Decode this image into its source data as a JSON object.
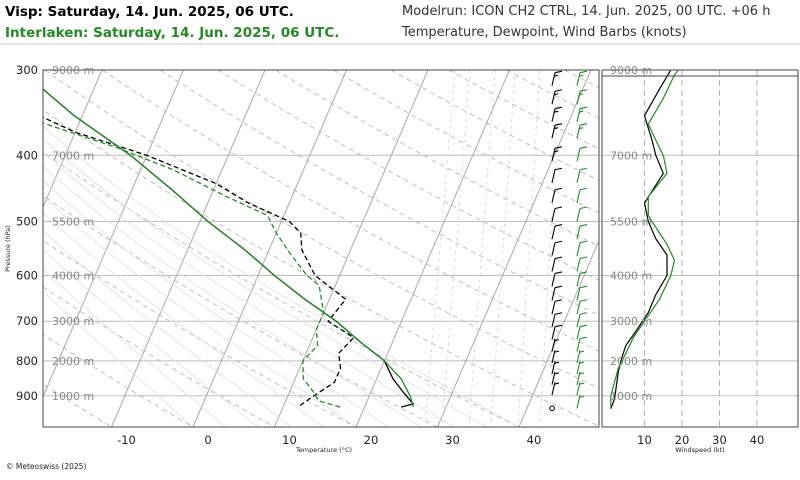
{
  "header": {
    "location_1": "Visp: Saturday, 14. Jun. 2025, 06 UTC.",
    "location_2": "Interlaken: Saturday, 14. Jun. 2025, 06 UTC.",
    "model_run": "Modelrun: ICON CH2 CTRL, 14. Jun. 2025, 00 UTC. +06 h",
    "description": "Temperature, Dewpoint, Wind Barbs (knots)"
  },
  "footer": {
    "copyright": "© Meteoswiss (2025)"
  },
  "colors": {
    "location_1": "#000000",
    "location_2": "#228B22",
    "grid": "#bbbbbb"
  },
  "chart_data": [
    {
      "type": "line",
      "subtype": "skew-t",
      "xlabel": "Temperature (°C)",
      "ylabel": "Pressure (hPa)",
      "x_ticks": [
        -10,
        0,
        10,
        20,
        30,
        40
      ],
      "y_ticks": [
        300,
        400,
        500,
        600,
        700,
        800,
        900
      ],
      "altitude_labels": [
        "9000 m",
        "7000 m",
        "5500 m",
        "4000 m",
        "3000 m",
        "2000 m",
        "1000 m"
      ],
      "altitude_pressures": [
        300,
        400,
        500,
        600,
        700,
        800,
        900
      ],
      "x_range": [
        -25,
        47
      ],
      "y_range": [
        300,
        1000
      ],
      "y_scale": "log",
      "series": [
        {
          "name": "Visp: Saturday, 14. Jun. 2025, 06 UTC.",
          "variable": "temperature",
          "style": "solid",
          "color": "#000000",
          "points": [
            [
              24.5,
              935
            ],
            [
              25.8,
              925
            ],
            [
              24,
              890
            ],
            [
              22,
              850
            ],
            [
              20,
              800
            ],
            [
              16,
              750
            ],
            [
              12,
              700
            ],
            [
              7,
              650
            ],
            [
              2,
              600
            ],
            [
              -3,
              550
            ],
            [
              -9,
              500
            ],
            [
              -15,
              450
            ],
            [
              -22,
              400
            ],
            [
              -31,
              350
            ],
            [
              -40,
              300
            ]
          ]
        },
        {
          "name": "Visp: Saturday, 14. Jun. 2025, 06 UTC.",
          "variable": "dewpoint",
          "style": "dashed",
          "color": "#000000",
          "points": [
            [
              12,
              930
            ],
            [
              13,
              905
            ],
            [
              15,
              860
            ],
            [
              15,
              820
            ],
            [
              14,
              780
            ],
            [
              15,
              740
            ],
            [
              11,
              700
            ],
            [
              12,
              650
            ],
            [
              7,
              600
            ],
            [
              4,
              550
            ],
            [
              3,
              520
            ],
            [
              1,
              500
            ],
            [
              -5,
              470
            ],
            [
              -10,
              440
            ],
            [
              -20,
              400
            ],
            [
              -30,
              370
            ],
            [
              -38,
              340
            ],
            [
              -45,
              310
            ],
            [
              -47,
              300
            ]
          ]
        },
        {
          "name": "Interlaken: Saturday, 14. Jun. 2025, 06 UTC.",
          "variable": "temperature",
          "style": "solid",
          "color": "#228B22",
          "points": [
            [
              26,
              935
            ],
            [
              25,
              900
            ],
            [
              23,
              850
            ],
            [
              20,
              800
            ],
            [
              16,
              750
            ],
            [
              12,
              700
            ],
            [
              7,
              650
            ],
            [
              2,
              600
            ],
            [
              -3,
              550
            ],
            [
              -9,
              500
            ],
            [
              -15,
              450
            ],
            [
              -22,
              400
            ],
            [
              -31,
              350
            ],
            [
              -40,
              300
            ]
          ]
        },
        {
          "name": "Interlaken: Saturday, 14. Jun. 2025, 06 UTC.",
          "variable": "dewpoint",
          "style": "dashed",
          "color": "#228B22",
          "points": [
            [
              17,
              935
            ],
            [
              14,
              915
            ],
            [
              13,
              890
            ],
            [
              11,
              850
            ],
            [
              10,
              800
            ],
            [
              11,
              760
            ],
            [
              10,
              720
            ],
            [
              10,
              680
            ],
            [
              8,
              620
            ],
            [
              6,
              600
            ],
            [
              3,
              560
            ],
            [
              0,
              520
            ],
            [
              -2,
              490
            ],
            [
              -8,
              460
            ],
            [
              -16,
              420
            ],
            [
              -24,
              390
            ],
            [
              -34,
              360
            ],
            [
              -44,
              330
            ],
            [
              -48,
              305
            ]
          ]
        }
      ],
      "wind_barbs": {
        "pressures": [
          920,
          880,
          850,
          820,
          790,
          760,
          730,
          700,
          670,
          640,
          610,
          580,
          550,
          520,
          490,
          460,
          430,
          400,
          370,
          350,
          330,
          310
        ],
        "series": [
          {
            "name": "Visp: Saturday, 14. Jun. 2025, 06 UTC.",
            "color": "#000000",
            "speeds_kt": [
              3,
              5,
              5,
              5,
              5,
              5,
              10,
              10,
              10,
              10,
              10,
              10,
              10,
              10,
              10,
              10,
              10,
              15,
              15,
              15,
              15,
              15
            ]
          },
          {
            "name": "Interlaken: Saturday, 14. Jun. 2025, 06 UTC.",
            "color": "#228B22",
            "speeds_kt": [
              5,
              5,
              5,
              5,
              5,
              10,
              10,
              10,
              10,
              10,
              10,
              10,
              10,
              10,
              10,
              10,
              10,
              10,
              15,
              15,
              15,
              15
            ]
          }
        ]
      }
    },
    {
      "type": "line",
      "subtype": "wind-profile",
      "xlabel": "Windspeed (kt)",
      "x_ticks": [
        10,
        20,
        30,
        40
      ],
      "x_range": [
        0,
        50
      ],
      "y_ticks": [
        300,
        400,
        500,
        600,
        700,
        800,
        900
      ],
      "altitude_labels": [
        "9000 m",
        "7000 m",
        "5500 m",
        "4000 m",
        "3000 m",
        "2000 m",
        "1000 m"
      ],
      "y_scale": "log",
      "series": [
        {
          "name": "Visp: Saturday, 14. Jun. 2025, 06 UTC.",
          "color": "#000000",
          "points": [
            [
              1,
              940
            ],
            [
              2,
              910
            ],
            [
              2.5,
              870
            ],
            [
              3,
              830
            ],
            [
              4,
              790
            ],
            [
              5,
              760
            ],
            [
              8,
              720
            ],
            [
              11,
              680
            ],
            [
              13,
              640
            ],
            [
              16,
              600
            ],
            [
              16,
              560
            ],
            [
              13,
              530
            ],
            [
              11,
              500
            ],
            [
              10,
              470
            ],
            [
              15,
              425
            ],
            [
              13,
              400
            ],
            [
              12,
              380
            ],
            [
              10,
              350
            ],
            [
              14,
              320
            ],
            [
              17,
              300
            ],
            [
              19,
              295
            ]
          ]
        },
        {
          "name": "Interlaken: Saturday, 14. Jun. 2025, 06 UTC.",
          "color": "#228B22",
          "points": [
            [
              1,
              940
            ],
            [
              1,
              900
            ],
            [
              2,
              860
            ],
            [
              3,
              820
            ],
            [
              5,
              780
            ],
            [
              7,
              740
            ],
            [
              10,
              700
            ],
            [
              14,
              650
            ],
            [
              17,
              600
            ],
            [
              18,
              570
            ],
            [
              16,
              540
            ],
            [
              13,
              510
            ],
            [
              11,
              490
            ],
            [
              11,
              460
            ],
            [
              16,
              425
            ],
            [
              15,
              400
            ],
            [
              13,
              380
            ],
            [
              11,
              360
            ],
            [
              15,
              330
            ],
            [
              18,
              305
            ],
            [
              20,
              295
            ]
          ]
        }
      ]
    }
  ]
}
